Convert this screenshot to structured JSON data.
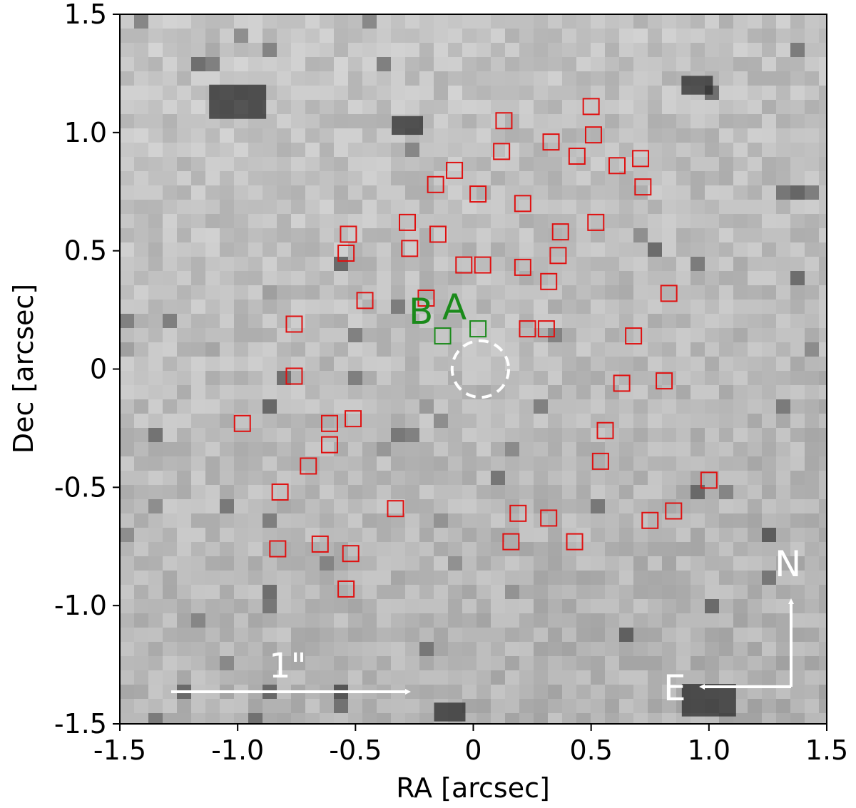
{
  "chart_data": {
    "type": "scatter",
    "title": "",
    "xlabel": "RA [arcsec]",
    "ylabel": "Dec [arcsec]",
    "xlim": [
      -1.5,
      1.5
    ],
    "ylim": [
      -1.5,
      1.5
    ],
    "xticks": [
      "-1.5",
      "-1.0",
      "-0.5",
      "0",
      "0.5",
      "1.0",
      "1.5"
    ],
    "xtick_values": [
      -1.5,
      -1.0,
      -0.5,
      0,
      0.5,
      1.0,
      1.5
    ],
    "yticks": [
      "-1.5",
      "-1.0",
      "-0.5",
      "0",
      "0.5",
      "1.0",
      "1.5"
    ],
    "ytick_values": [
      -1.5,
      -1.0,
      -0.5,
      0,
      0.5,
      1.0,
      1.5
    ],
    "background": "greyscale image",
    "series": [
      {
        "color": "#e01010",
        "marker": "square",
        "points": [
          [
            0.13,
            1.05
          ],
          [
            0.5,
            1.11
          ],
          [
            0.12,
            0.92
          ],
          [
            0.33,
            0.96
          ],
          [
            0.51,
            0.99
          ],
          [
            0.44,
            0.9
          ],
          [
            0.71,
            0.89
          ],
          [
            0.61,
            0.86
          ],
          [
            -0.08,
            0.84
          ],
          [
            0.72,
            0.77
          ],
          [
            -0.16,
            0.78
          ],
          [
            0.02,
            0.74
          ],
          [
            0.21,
            0.7
          ],
          [
            -0.28,
            0.62
          ],
          [
            0.52,
            0.62
          ],
          [
            -0.53,
            0.57
          ],
          [
            -0.15,
            0.57
          ],
          [
            0.37,
            0.58
          ],
          [
            -0.27,
            0.51
          ],
          [
            -0.54,
            0.49
          ],
          [
            0.36,
            0.48
          ],
          [
            -0.04,
            0.44
          ],
          [
            0.04,
            0.44
          ],
          [
            0.21,
            0.43
          ],
          [
            0.32,
            0.37
          ],
          [
            0.83,
            0.32
          ],
          [
            -0.46,
            0.29
          ],
          [
            -0.2,
            0.3
          ],
          [
            -0.76,
            0.19
          ],
          [
            0.23,
            0.17
          ],
          [
            0.31,
            0.17
          ],
          [
            0.68,
            0.14
          ],
          [
            -0.76,
            -0.03
          ],
          [
            0.63,
            -0.06
          ],
          [
            0.81,
            -0.05
          ],
          [
            -0.98,
            -0.23
          ],
          [
            -0.61,
            -0.23
          ],
          [
            -0.51,
            -0.21
          ],
          [
            0.56,
            -0.26
          ],
          [
            -0.61,
            -0.32
          ],
          [
            0.54,
            -0.39
          ],
          [
            -0.7,
            -0.41
          ],
          [
            1.0,
            -0.47
          ],
          [
            -0.82,
            -0.52
          ],
          [
            -0.33,
            -0.59
          ],
          [
            0.85,
            -0.6
          ],
          [
            0.19,
            -0.61
          ],
          [
            0.32,
            -0.63
          ],
          [
            0.75,
            -0.64
          ],
          [
            -0.65,
            -0.74
          ],
          [
            0.16,
            -0.73
          ],
          [
            0.43,
            -0.73
          ],
          [
            -0.83,
            -0.76
          ],
          [
            -0.52,
            -0.78
          ],
          [
            -0.54,
            -0.93
          ]
        ]
      },
      {
        "color": "#1a8a1a",
        "marker": "square",
        "points": [
          [
            0.02,
            0.17
          ],
          [
            -0.13,
            0.14
          ]
        ],
        "labels": [
          "A",
          "B"
        ]
      }
    ],
    "circle": {
      "center": [
        0.03,
        0.0
      ],
      "radius": 0.12,
      "style": "dashed",
      "color": "#ffffff"
    },
    "annotations": {
      "scale_bar_label": "1\"",
      "north_label": "N",
      "east_label": "E",
      "label_a": "A",
      "label_b": "B"
    },
    "grid": false,
    "legend": "none"
  }
}
